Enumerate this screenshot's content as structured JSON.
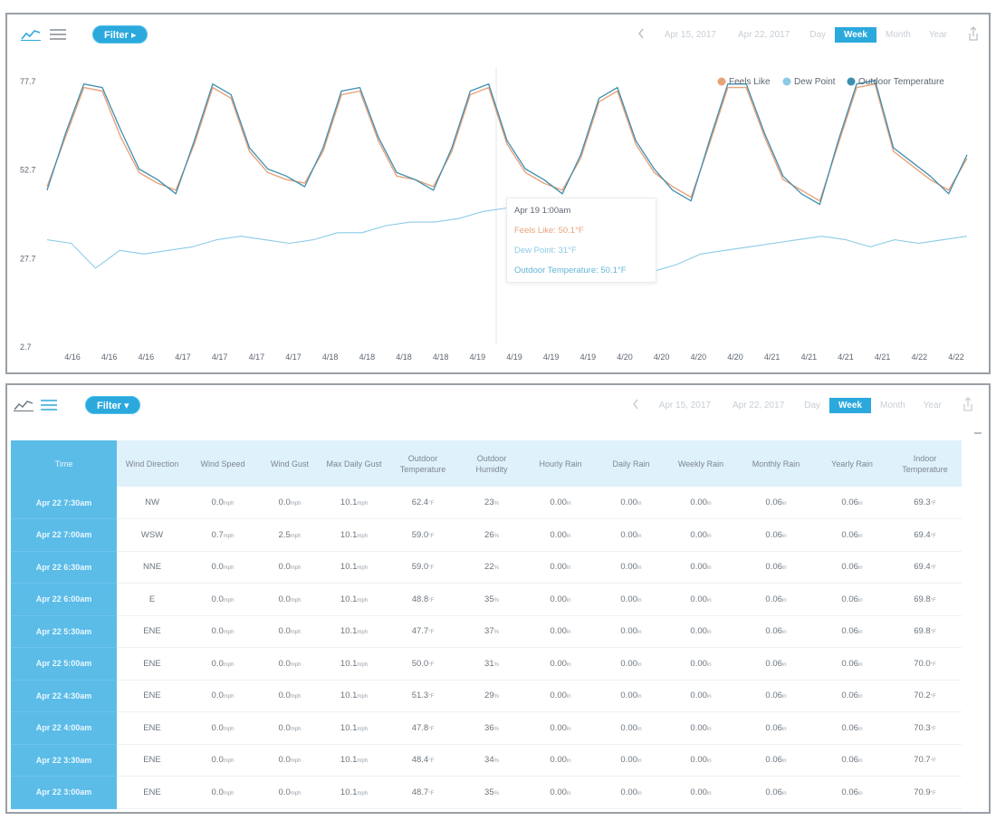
{
  "toolbar": {
    "filter_label": "Filter ▸",
    "filter_label_2": "Filter ▾",
    "date_from": "Apr 15, 2017",
    "date_to": "Apr 22, 2017",
    "segments": [
      "Day",
      "Week",
      "Month",
      "Year"
    ],
    "active_segment": "Week",
    "icons": [
      "line-chart-icon",
      "list-icon",
      "chevron-left-icon",
      "export-icon"
    ]
  },
  "colors": {
    "accent": "#2ba9dd",
    "time_column": "#5bbce8",
    "header_bg": "#dff1fb",
    "feels_like": "#e8a27a",
    "dew_point": "#8ccbe6",
    "outdoor_temp": "#3e8fb0"
  },
  "chart_data": {
    "type": "line",
    "yticks": [
      "77.7",
      "52.7",
      "27.7",
      "2.7"
    ],
    "ylim": [
      2.7,
      77.7
    ],
    "xlabels": [
      "4/16",
      "4/16",
      "4/16",
      "4/17",
      "4/17",
      "4/17",
      "4/17",
      "4/18",
      "4/18",
      "4/18",
      "4/18",
      "4/19",
      "4/19",
      "4/19",
      "4/19",
      "4/20",
      "4/20",
      "4/20",
      "4/20",
      "4/21",
      "4/21",
      "4/21",
      "4/21",
      "4/22",
      "4/22"
    ],
    "legend_position": "top-right",
    "series": [
      {
        "name": "Feels Like",
        "color": "#e8a27a",
        "values": [
          48,
          62,
          76,
          75,
          62,
          52,
          49,
          47,
          60,
          76,
          73,
          58,
          52,
          50,
          49,
          58,
          74,
          75,
          61,
          51,
          50,
          48,
          58,
          74,
          76,
          60,
          52,
          49,
          47,
          56,
          72,
          75,
          60,
          52,
          48,
          45,
          60,
          76,
          76,
          62,
          50,
          47,
          44,
          60,
          76,
          77,
          58,
          54,
          50,
          47,
          56
        ]
      },
      {
        "name": "Dew Point",
        "values": [
          33,
          32,
          25,
          30,
          29,
          30,
          31,
          33,
          34,
          33,
          32,
          33,
          35,
          35,
          37,
          38,
          38,
          39,
          41,
          42,
          44,
          44,
          40,
          38,
          36,
          24,
          26,
          29,
          30,
          31,
          32,
          33,
          34,
          33,
          31,
          33,
          32,
          33,
          34
        ]
      },
      {
        "name": "Outdoor Temperature",
        "values": [
          47,
          63,
          77,
          76,
          64,
          53,
          50,
          46,
          61,
          77,
          74,
          59,
          53,
          51,
          48,
          59,
          75,
          76,
          62,
          52,
          50,
          47,
          59,
          75,
          77,
          61,
          53,
          50,
          46,
          57,
          73,
          76,
          61,
          53,
          47,
          44,
          61,
          77,
          77,
          63,
          51,
          46,
          43,
          61,
          77,
          78,
          59,
          55,
          51,
          46,
          57
        ]
      }
    ],
    "tooltip": {
      "title": "Apr 19 1:00am",
      "feels_like": "Feels Like: 50.1°F",
      "dew_point": "Dew Point: 31°F",
      "outdoor": "Outdoor Temperature: 50.1°F"
    }
  },
  "table": {
    "headers": [
      "Time",
      "Wind Direction",
      "Wind Speed",
      "Wind Gust",
      "Max Daily Gust",
      "Outdoor Temperature",
      "Outdoor Humidity",
      "Hourly Rain",
      "Daily Rain",
      "Weekly Rain",
      "Monthly Rain",
      "Yearly Rain",
      "Indoor Temperature"
    ],
    "rows": [
      [
        "Apr 22 7:30am",
        "NW",
        "0.0",
        "0.0",
        "10.1",
        "62.4",
        "23",
        "0.00",
        "0.00",
        "0.00",
        "0.06",
        "0.06",
        "69.3"
      ],
      [
        "Apr 22 7:00am",
        "WSW",
        "0.7",
        "2.5",
        "10.1",
        "59.0",
        "26",
        "0.00",
        "0.00",
        "0.00",
        "0.06",
        "0.06",
        "69.4"
      ],
      [
        "Apr 22 6:30am",
        "NNE",
        "0.0",
        "0.0",
        "10.1",
        "59.0",
        "22",
        "0.00",
        "0.00",
        "0.00",
        "0.06",
        "0.06",
        "69.4"
      ],
      [
        "Apr 22 6:00am",
        "E",
        "0.0",
        "0.0",
        "10.1",
        "48.8",
        "35",
        "0.00",
        "0.00",
        "0.00",
        "0.06",
        "0.06",
        "69.8"
      ],
      [
        "Apr 22 5:30am",
        "ENE",
        "0.0",
        "0.0",
        "10.1",
        "47.7",
        "37",
        "0.00",
        "0.00",
        "0.00",
        "0.06",
        "0.06",
        "69.8"
      ],
      [
        "Apr 22 5:00am",
        "ENE",
        "0.0",
        "0.0",
        "10.1",
        "50.0",
        "31",
        "0.00",
        "0.00",
        "0.00",
        "0.06",
        "0.06",
        "70.0"
      ],
      [
        "Apr 22 4:30am",
        "ENE",
        "0.0",
        "0.0",
        "10.1",
        "51.3",
        "29",
        "0.00",
        "0.00",
        "0.00",
        "0.06",
        "0.06",
        "70.2"
      ],
      [
        "Apr 22 4:00am",
        "ENE",
        "0.0",
        "0.0",
        "10.1",
        "47.8",
        "36",
        "0.00",
        "0.00",
        "0.00",
        "0.06",
        "0.06",
        "70.3"
      ],
      [
        "Apr 22 3:30am",
        "ENE",
        "0.0",
        "0.0",
        "10.1",
        "48.4",
        "34",
        "0.00",
        "0.00",
        "0.00",
        "0.06",
        "0.06",
        "70.7"
      ],
      [
        "Apr 22 3:00am",
        "ENE",
        "0.0",
        "0.0",
        "10.1",
        "48.7",
        "35",
        "0.00",
        "0.00",
        "0.00",
        "0.06",
        "0.06",
        "70.9"
      ]
    ],
    "units": [
      "",
      "",
      "mph",
      "mph",
      "mph",
      "°F",
      "%",
      "in",
      "in",
      "in",
      "in",
      "in",
      "°F"
    ]
  }
}
